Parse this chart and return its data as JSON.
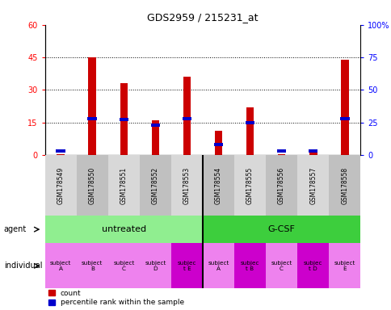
{
  "title": "GDS2959 / 215231_at",
  "samples": [
    "GSM178549",
    "GSM178550",
    "GSM178551",
    "GSM178552",
    "GSM178553",
    "GSM178554",
    "GSM178555",
    "GSM178556",
    "GSM178557",
    "GSM178558"
  ],
  "count_values": [
    0.3,
    45,
    33,
    16,
    36,
    11,
    22,
    0.5,
    1.0,
    44
  ],
  "percentile_values": [
    3,
    28,
    27,
    23,
    28,
    8,
    25,
    3,
    3,
    28
  ],
  "ylim_left": [
    0,
    60
  ],
  "ylim_right": [
    0,
    100
  ],
  "yticks_left": [
    0,
    15,
    30,
    45,
    60
  ],
  "yticks_right": [
    0,
    25,
    50,
    75,
    100
  ],
  "agent_labels": [
    "untreated",
    "G-CSF"
  ],
  "agent_colors": [
    "#90ee90",
    "#3dce3d"
  ],
  "bar_color_count": "#cc0000",
  "bar_color_pct": "#0000cc",
  "individual_labels": [
    "subject\nA",
    "subject\nB",
    "subject\nC",
    "subject\nD",
    "subjec\nt E",
    "subject\nA",
    "subjec\nt B",
    "subject\nC",
    "subjec\nt D",
    "subject\nE"
  ],
  "individual_highlight": [
    4,
    6,
    8
  ],
  "individual_color_normal": "#ee82ee",
  "individual_color_highlight": "#cc00cc"
}
